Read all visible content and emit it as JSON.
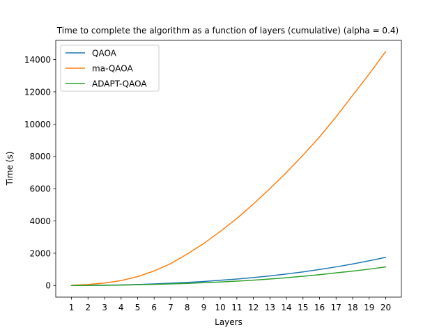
{
  "chart_data": {
    "type": "line",
    "title": "Time to complete the algorithm as a function of layers (cumulative) (alpha = 0.4)",
    "xlabel": "Layers",
    "ylabel": "Time (s)",
    "x": [
      1,
      2,
      3,
      4,
      5,
      6,
      7,
      8,
      9,
      10,
      11,
      12,
      13,
      14,
      15,
      16,
      17,
      18,
      19,
      20
    ],
    "xlim": [
      0.05,
      20.95
    ],
    "ylim": [
      -723,
      15190
    ],
    "yticks": [
      0,
      2000,
      4000,
      6000,
      8000,
      10000,
      12000,
      14000
    ],
    "legend_position": "upper-left",
    "grid": false,
    "series": [
      {
        "name": "QAOA",
        "color": "#1f77b4",
        "values": [
          2,
          8,
          18,
          34,
          60,
          95,
          140,
          190,
          250,
          320,
          400,
          490,
          590,
          710,
          840,
          990,
          1150,
          1330,
          1530,
          1740
        ]
      },
      {
        "name": "ma-QAOA",
        "color": "#ff7f0e",
        "values": [
          10,
          60,
          150,
          300,
          550,
          900,
          1350,
          1950,
          2600,
          3350,
          4150,
          5050,
          6000,
          7000,
          8080,
          9200,
          10450,
          11780,
          13100,
          14500
        ]
      },
      {
        "name": "ADAPT-QAOA",
        "color": "#2ca02c",
        "values": [
          1,
          5,
          12,
          22,
          40,
          65,
          95,
          130,
          170,
          215,
          270,
          330,
          400,
          480,
          570,
          670,
          780,
          890,
          1010,
          1150
        ]
      }
    ]
  }
}
